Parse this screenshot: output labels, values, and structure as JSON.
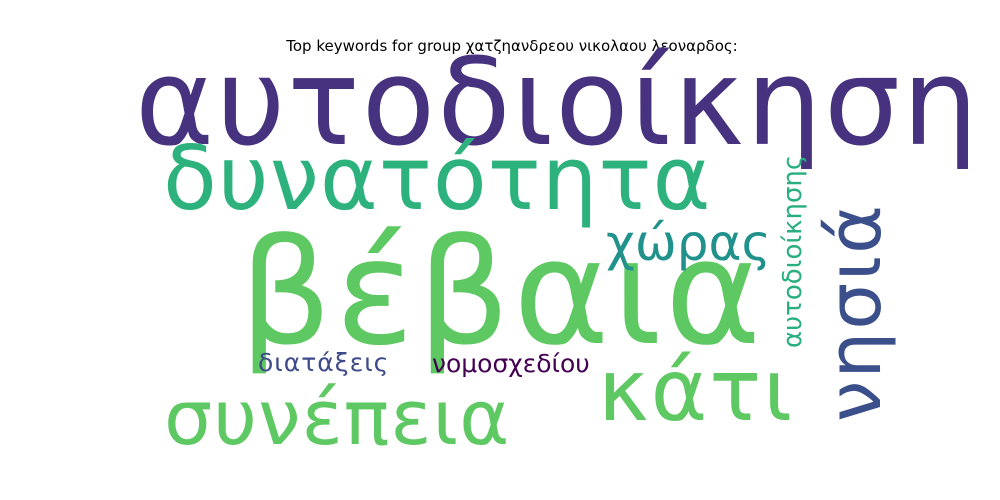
{
  "title": "Top keywords for group χατζηανδρεου νικολαου λεοναρδος:",
  "words": [
    {
      "text": "αυτοδιοίκηση",
      "color": "#46327e"
    },
    {
      "text": "δυνατότητα",
      "color": "#2db27d"
    },
    {
      "text": "βέβαια",
      "color": "#5ec962"
    },
    {
      "text": "χώρας",
      "color": "#21918c"
    },
    {
      "text": "νησιά",
      "color": "#3b4f8a"
    },
    {
      "text": "αυτοδιοίκησης",
      "color": "#29af7f"
    },
    {
      "text": "κάτι",
      "color": "#5ec962"
    },
    {
      "text": "συνέπεια",
      "color": "#5ec962"
    },
    {
      "text": "διατάξεις",
      "color": "#3e4a89"
    },
    {
      "text": "νομοσχεδίου",
      "color": "#440154"
    }
  ]
}
